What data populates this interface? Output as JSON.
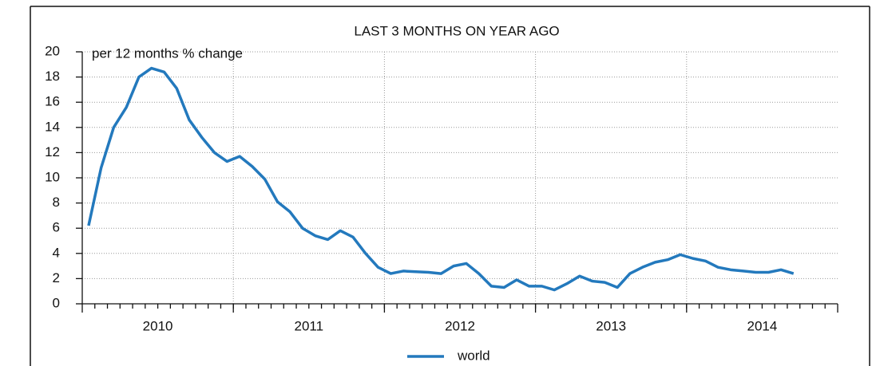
{
  "chart_data": {
    "type": "line",
    "title": "LAST 3 MONTHS ON YEAR AGO",
    "annotation": "per 12 months % change",
    "x": [
      2010.042,
      2010.125,
      2010.208,
      2010.292,
      2010.375,
      2010.458,
      2010.542,
      2010.625,
      2010.708,
      2010.792,
      2010.875,
      2010.958,
      2011.042,
      2011.125,
      2011.208,
      2011.292,
      2011.375,
      2011.458,
      2011.542,
      2011.625,
      2011.708,
      2011.792,
      2011.875,
      2011.958,
      2012.042,
      2012.125,
      2012.208,
      2012.292,
      2012.375,
      2012.458,
      2012.542,
      2012.625,
      2012.708,
      2012.792,
      2012.875,
      2012.958,
      2013.042,
      2013.125,
      2013.208,
      2013.292,
      2013.375,
      2013.458,
      2013.542,
      2013.625,
      2013.708,
      2013.792,
      2013.875,
      2013.958,
      2014.042,
      2014.125,
      2014.208,
      2014.292,
      2014.375,
      2014.458,
      2014.542,
      2014.625,
      2014.708
    ],
    "series": [
      {
        "name": "world",
        "color": "#2379bd",
        "values": [
          6.2,
          10.8,
          14.0,
          15.6,
          18.0,
          18.7,
          18.4,
          17.1,
          14.6,
          13.2,
          12.0,
          11.3,
          11.7,
          10.9,
          9.9,
          8.1,
          7.3,
          6.0,
          5.4,
          5.1,
          5.8,
          5.3,
          4.0,
          2.9,
          2.4,
          2.6,
          2.55,
          2.5,
          2.4,
          3.0,
          3.2,
          2.4,
          1.4,
          1.3,
          1.9,
          1.4,
          1.4,
          1.1,
          1.6,
          2.2,
          1.8,
          1.7,
          1.3,
          2.4,
          2.9,
          3.3,
          3.5,
          3.9,
          3.6,
          3.4,
          2.9,
          2.7,
          2.6,
          2.5,
          2.5,
          2.7,
          2.4
        ]
      }
    ],
    "xlim": [
      2010,
      2015
    ],
    "xticks": [
      2010,
      2011,
      2012,
      2013,
      2014,
      2015
    ],
    "year_labels": [
      "2010",
      "2011",
      "2012",
      "2013",
      "2014"
    ],
    "ylim": [
      0,
      20
    ],
    "yticks": [
      0,
      2,
      4,
      6,
      8,
      10,
      12,
      14,
      16,
      18,
      20
    ],
    "grid": true
  }
}
